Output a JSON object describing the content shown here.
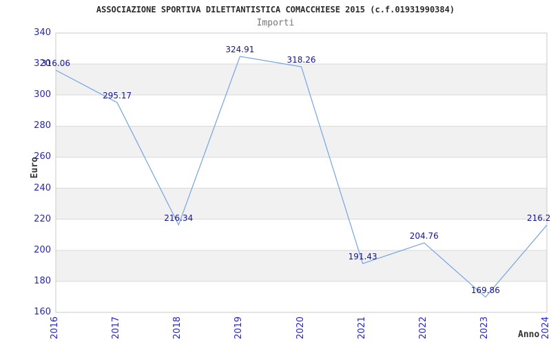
{
  "chart_data": {
    "type": "line",
    "title": "ASSOCIAZIONE SPORTIVA DILETTANTISTICA COMACCHIESE 2015 (c.f.01931990384)",
    "subtitle": "Importi",
    "xlabel": "Anno",
    "ylabel": "Euro",
    "x": [
      "2016",
      "2017",
      "2018",
      "2019",
      "2020",
      "2021",
      "2022",
      "2023",
      "2024"
    ],
    "series": [
      {
        "name": "Importi",
        "values": [
          316.06,
          295.17,
          216.34,
          324.91,
          318.26,
          191.43,
          204.76,
          169.86,
          216.2
        ],
        "point_labels": [
          "316.06",
          "295.17",
          "216.34",
          "324.91",
          "318.26",
          "191.43",
          "204.76",
          "169.86",
          "216.2"
        ]
      }
    ],
    "ylim": [
      160,
      340
    ],
    "ytick_step": 20,
    "yticks": [
      "160",
      "180",
      "200",
      "220",
      "240",
      "260",
      "280",
      "300",
      "320",
      "340"
    ],
    "grid": "horizontal",
    "banded_background": true,
    "legend": "none",
    "colors": {
      "line": "#74a3e3",
      "point_label": "#14148c",
      "tick_label": "#2424cc",
      "band_fill": "#f1f1f1",
      "gridline": "#d9d9d9",
      "plot_border": "#c9c9c9",
      "title_text": "#2b2b2b",
      "subtitle_text": "#767676",
      "axis_title_text": "#333333"
    }
  }
}
